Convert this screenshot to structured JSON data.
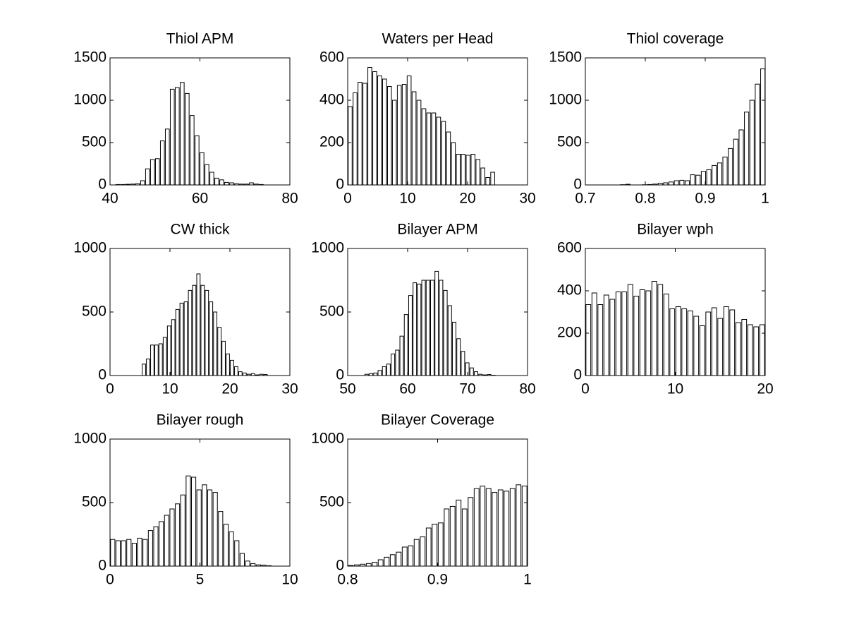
{
  "chart_data": [
    {
      "type": "histogram",
      "title": "Thiol APM",
      "bins": [
        41.2,
        42.3,
        43.4,
        44.5,
        45.6,
        46.7,
        47.8,
        48.9,
        50,
        51.1,
        52.2,
        53.3,
        54.4,
        55.5,
        56.6,
        57.7,
        58.8,
        59.9,
        61,
        62.1,
        63.2,
        64.3,
        65.4,
        66.5,
        67.6,
        68.7,
        69.8,
        70.9,
        72,
        73.1,
        74.2
      ],
      "counts": [
        5,
        5,
        8,
        10,
        15,
        50,
        190,
        300,
        310,
        520,
        660,
        1130,
        1150,
        1210,
        1080,
        820,
        580,
        380,
        240,
        150,
        80,
        60,
        30,
        25,
        15,
        10,
        10,
        25,
        10,
        5
      ],
      "xlim": [
        40,
        80
      ],
      "xticks": [
        40,
        60,
        80
      ],
      "ylim": [
        0,
        1500
      ],
      "yticks": [
        0,
        500,
        1000,
        1500
      ],
      "color": "#ffffff"
    },
    {
      "type": "histogram",
      "title": "Waters per Head",
      "bins": [
        0,
        0.82,
        1.64,
        2.46,
        3.28,
        4.1,
        4.92,
        5.74,
        6.56,
        7.38,
        8.2,
        9.02,
        9.84,
        10.66,
        11.48,
        12.3,
        13.12,
        13.94,
        14.76,
        15.58,
        16.4,
        17.22,
        18.04,
        18.86,
        19.68,
        20.5,
        21.32,
        22.14,
        22.96,
        23.78,
        24.6
      ],
      "counts": [
        370,
        435,
        485,
        480,
        555,
        535,
        515,
        500,
        465,
        400,
        470,
        475,
        515,
        440,
        400,
        360,
        340,
        340,
        320,
        300,
        250,
        200,
        145,
        145,
        140,
        145,
        120,
        80,
        35,
        60
      ],
      "xlim": [
        0,
        30
      ],
      "xticks": [
        0,
        10,
        20,
        30
      ],
      "ylim": [
        0,
        600
      ],
      "yticks": [
        0,
        200,
        400,
        600
      ],
      "color": "#ffffff"
    },
    {
      "type": "histogram",
      "title": "Thiol coverage",
      "bins": [
        0.7575,
        0.7665,
        0.7755,
        0.7845,
        0.7935,
        0.8025,
        0.8115,
        0.8205,
        0.8295,
        0.8385,
        0.8475,
        0.8565,
        0.8655,
        0.8745,
        0.8835,
        0.8925,
        0.9015,
        0.9105,
        0.9195,
        0.9285,
        0.9375,
        0.9465,
        0.9555,
        0.9645,
        0.9735,
        0.9825,
        0.9915,
        1.0005
      ],
      "counts": [
        3,
        8,
        0,
        0,
        2,
        5,
        10,
        20,
        25,
        35,
        50,
        55,
        50,
        120,
        115,
        160,
        180,
        230,
        260,
        330,
        430,
        540,
        650,
        860,
        1000,
        1190,
        1370
      ],
      "xlim": [
        0.7,
        1
      ],
      "xticks": [
        0.7,
        0.8,
        0.9,
        1
      ],
      "ylim": [
        0,
        1500
      ],
      "yticks": [
        0,
        500,
        1000,
        1500
      ],
      "color": "#ffffff"
    },
    {
      "type": "histogram",
      "title": "CW thick",
      "bins": [
        5.3,
        6,
        6.7,
        7.4,
        8.1,
        8.8,
        9.5,
        10.2,
        10.9,
        11.6,
        12.3,
        13,
        13.7,
        14.4,
        15.1,
        15.8,
        16.5,
        17.2,
        17.9,
        18.6,
        19.3,
        20,
        20.7,
        21.4,
        22.1,
        22.8,
        23.5,
        24.2,
        24.9,
        25.6,
        26.3
      ],
      "counts": [
        90,
        130,
        240,
        240,
        250,
        300,
        390,
        440,
        520,
        570,
        580,
        670,
        710,
        800,
        710,
        670,
        580,
        500,
        380,
        270,
        170,
        120,
        70,
        30,
        20,
        10,
        15,
        5,
        10,
        8
      ],
      "xlim": [
        0,
        30
      ],
      "xticks": [
        0,
        10,
        20,
        30
      ],
      "ylim": [
        0,
        1000
      ],
      "yticks": [
        0,
        500,
        1000
      ],
      "color": "#ffffff"
    },
    {
      "type": "histogram",
      "title": "Bilayer APM",
      "bins": [
        52.8,
        53.53,
        54.26,
        54.99,
        55.72,
        56.45,
        57.18,
        57.91,
        58.64,
        59.37,
        60.1,
        60.83,
        61.56,
        62.29,
        63.02,
        63.75,
        64.48,
        65.21,
        65.94,
        66.67,
        67.4,
        68.13,
        68.86,
        69.59,
        70.32,
        71.05,
        71.78,
        72.51,
        73.24,
        73.97,
        74.7
      ],
      "counts": [
        10,
        15,
        20,
        40,
        70,
        90,
        170,
        200,
        310,
        480,
        630,
        730,
        720,
        750,
        750,
        750,
        820,
        750,
        670,
        550,
        420,
        290,
        190,
        100,
        60,
        30,
        10,
        5,
        8,
        2
      ],
      "xlim": [
        50,
        80
      ],
      "xticks": [
        50,
        60,
        70,
        80
      ],
      "ylim": [
        0,
        1000
      ],
      "yticks": [
        0,
        500,
        1000
      ],
      "color": "#ffffff"
    },
    {
      "type": "histogram",
      "title": "Bilayer wph",
      "bins": [
        0,
        0.667,
        1.333,
        2,
        2.667,
        3.333,
        4,
        4.667,
        5.333,
        6,
        6.667,
        7.333,
        8,
        8.667,
        9.333,
        10,
        10.667,
        11.333,
        12,
        12.667,
        13.333,
        14,
        14.667,
        15.333,
        16,
        16.667,
        17.333,
        18,
        18.667,
        19.333,
        20
      ],
      "counts": [
        335,
        390,
        335,
        380,
        360,
        395,
        395,
        430,
        375,
        405,
        400,
        445,
        430,
        385,
        315,
        325,
        315,
        305,
        280,
        235,
        300,
        320,
        270,
        325,
        310,
        250,
        265,
        240,
        230,
        240
      ],
      "xlim": [
        0,
        20
      ],
      "xticks": [
        0,
        10,
        20
      ],
      "ylim": [
        0,
        600
      ],
      "yticks": [
        0,
        200,
        400,
        600
      ],
      "color": "#ffffff"
    },
    {
      "type": "histogram",
      "title": "Bilayer rough",
      "bins": [
        0,
        0.3,
        0.6,
        0.9,
        1.2,
        1.5,
        1.8,
        2.1,
        2.4,
        2.7,
        3,
        3.3,
        3.6,
        3.9,
        4.2,
        4.5,
        4.8,
        5.1,
        5.4,
        5.7,
        6,
        6.3,
        6.6,
        6.9,
        7.2,
        7.5,
        7.8,
        8.1,
        8.4,
        8.7,
        9
      ],
      "counts": [
        210,
        200,
        200,
        210,
        180,
        220,
        210,
        280,
        310,
        350,
        400,
        450,
        490,
        560,
        710,
        700,
        600,
        640,
        600,
        580,
        430,
        330,
        270,
        200,
        100,
        40,
        20,
        10,
        8,
        3
      ],
      "xlim": [
        0,
        10
      ],
      "xticks": [
        0,
        5,
        10
      ],
      "ylim": [
        0,
        1000
      ],
      "yticks": [
        0,
        500,
        1000
      ],
      "color": "#ffffff"
    },
    {
      "type": "histogram",
      "title": "Bilayer Coverage",
      "bins": [
        0.8,
        0.8067,
        0.8133,
        0.82,
        0.8267,
        0.8333,
        0.84,
        0.8467,
        0.8533,
        0.86,
        0.8667,
        0.8733,
        0.88,
        0.8867,
        0.8933,
        0.9,
        0.9067,
        0.9133,
        0.92,
        0.9267,
        0.9333,
        0.94,
        0.9467,
        0.9533,
        0.96,
        0.9667,
        0.9733,
        0.98,
        0.9867,
        0.9933,
        1
      ],
      "counts": [
        5,
        10,
        15,
        20,
        30,
        50,
        70,
        90,
        110,
        150,
        160,
        210,
        230,
        300,
        330,
        340,
        450,
        470,
        520,
        450,
        540,
        610,
        630,
        610,
        580,
        600,
        590,
        610,
        640,
        630
      ],
      "xlim": [
        0.8,
        1
      ],
      "xticks": [
        0.8,
        0.9,
        1
      ],
      "ylim": [
        0,
        1000
      ],
      "yticks": [
        0,
        500,
        1000
      ],
      "color": "#ffffff"
    }
  ]
}
